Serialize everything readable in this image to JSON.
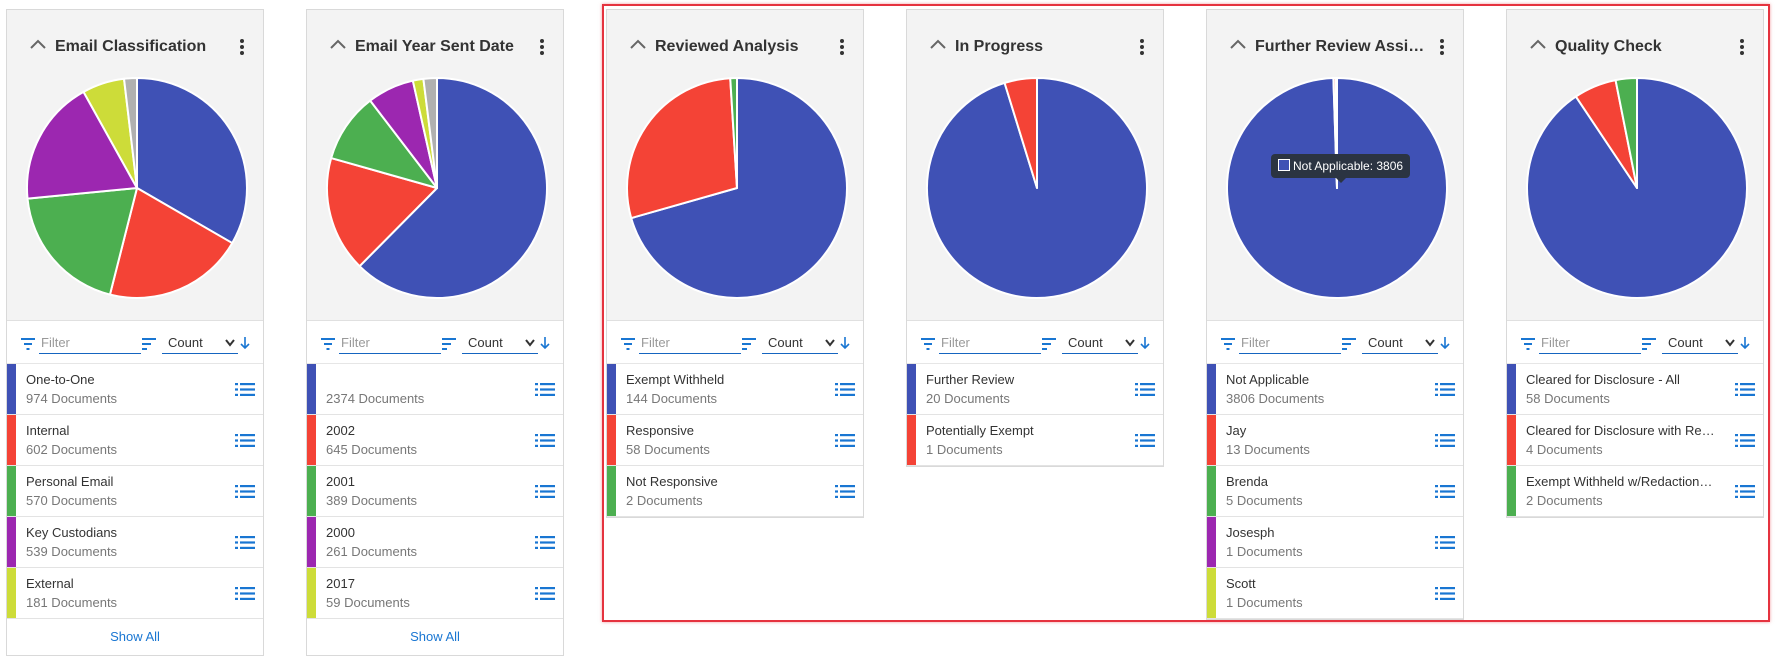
{
  "colors": {
    "blue": "#3f51b5",
    "red": "#f44336",
    "green": "#4caf50",
    "purple": "#9c27b0",
    "lime": "#cddc39",
    "gray": "#b0b0b0",
    "highlight": "#e5333f",
    "link": "#1976d2"
  },
  "widgets": [
    {
      "title": "Email Classification",
      "filter_placeholder": "Filter",
      "sort_value": "Count",
      "show_all": "Show All",
      "items": [
        {
          "label": "One-to-One",
          "count": "974 Documents",
          "color": "#3f51b5"
        },
        {
          "label": "Internal",
          "count": "602 Documents",
          "color": "#f44336"
        },
        {
          "label": "Personal Email",
          "count": "570 Documents",
          "color": "#4caf50"
        },
        {
          "label": "Key Custodians",
          "count": "539 Documents",
          "color": "#9c27b0"
        },
        {
          "label": "External",
          "count": "181 Documents",
          "color": "#cddc39"
        }
      ],
      "pie": [
        {
          "value": 974,
          "color": "#3f51b5"
        },
        {
          "value": 602,
          "color": "#f44336"
        },
        {
          "value": 570,
          "color": "#4caf50"
        },
        {
          "value": 539,
          "color": "#9c27b0"
        },
        {
          "value": 181,
          "color": "#cddc39"
        },
        {
          "value": 55,
          "color": "#b0b0b0"
        }
      ]
    },
    {
      "title": "Email Year Sent Date",
      "filter_placeholder": "Filter",
      "sort_value": "Count",
      "show_all": "Show All",
      "items": [
        {
          "label": "",
          "count": "2374 Documents",
          "color": "#3f51b5"
        },
        {
          "label": "2002",
          "count": "645 Documents",
          "color": "#f44336"
        },
        {
          "label": "2001",
          "count": "389 Documents",
          "color": "#4caf50"
        },
        {
          "label": "2000",
          "count": "261 Documents",
          "color": "#9c27b0"
        },
        {
          "label": "2017",
          "count": "59 Documents",
          "color": "#cddc39"
        }
      ],
      "pie": [
        {
          "value": 2374,
          "color": "#3f51b5"
        },
        {
          "value": 645,
          "color": "#f44336"
        },
        {
          "value": 389,
          "color": "#4caf50"
        },
        {
          "value": 261,
          "color": "#9c27b0"
        },
        {
          "value": 59,
          "color": "#cddc39"
        },
        {
          "value": 75,
          "color": "#b0b0b0"
        }
      ]
    },
    {
      "title": "Reviewed Analysis",
      "filter_placeholder": "Filter",
      "sort_value": "Count",
      "items": [
        {
          "label": "Exempt Withheld",
          "count": "144 Documents",
          "color": "#3f51b5"
        },
        {
          "label": "Responsive",
          "count": "58 Documents",
          "color": "#f44336"
        },
        {
          "label": "Not Responsive",
          "count": "2 Documents",
          "color": "#4caf50"
        }
      ],
      "pie": [
        {
          "value": 144,
          "color": "#3f51b5"
        },
        {
          "value": 58,
          "color": "#f44336"
        },
        {
          "value": 2,
          "color": "#4caf50"
        }
      ]
    },
    {
      "title": "In Progress",
      "filter_placeholder": "Filter",
      "sort_value": "Count",
      "items": [
        {
          "label": "Further Review",
          "count": "20 Documents",
          "color": "#3f51b5"
        },
        {
          "label": "Potentially Exempt",
          "count": "1 Documents",
          "color": "#f44336"
        }
      ],
      "pie": [
        {
          "value": 20,
          "color": "#3f51b5"
        },
        {
          "value": 1,
          "color": "#f44336"
        }
      ]
    },
    {
      "title": "Further Review Assign...",
      "filter_placeholder": "Filter",
      "sort_value": "Count",
      "tooltip": "Not Applicable: 3806",
      "items": [
        {
          "label": "Not Applicable",
          "count": "3806 Documents",
          "color": "#3f51b5"
        },
        {
          "label": "Jay",
          "count": "13 Documents",
          "color": "#f44336"
        },
        {
          "label": "Brenda",
          "count": "5 Documents",
          "color": "#4caf50"
        },
        {
          "label": "Josesph",
          "count": "1 Documents",
          "color": "#9c27b0"
        },
        {
          "label": "Scott",
          "count": "1 Documents",
          "color": "#cddc39"
        }
      ],
      "pie": [
        {
          "value": 3806,
          "color": "#3f51b5"
        },
        {
          "value": 13,
          "color": "#f44336"
        },
        {
          "value": 5,
          "color": "#4caf50"
        },
        {
          "value": 1,
          "color": "#9c27b0"
        },
        {
          "value": 1,
          "color": "#cddc39"
        }
      ]
    },
    {
      "title": "Quality Check",
      "filter_placeholder": "Filter",
      "sort_value": "Count",
      "items": [
        {
          "label": "Cleared for Disclosure - All",
          "count": "58 Documents",
          "color": "#3f51b5"
        },
        {
          "label": "Cleared for Disclosure with Red...",
          "count": "4 Documents",
          "color": "#f44336"
        },
        {
          "label": "Exempt Withheld w/Redactions ...",
          "count": "2 Documents",
          "color": "#4caf50"
        }
      ],
      "pie": [
        {
          "value": 58,
          "color": "#3f51b5"
        },
        {
          "value": 4,
          "color": "#f44336"
        },
        {
          "value": 2,
          "color": "#4caf50"
        }
      ]
    }
  ]
}
